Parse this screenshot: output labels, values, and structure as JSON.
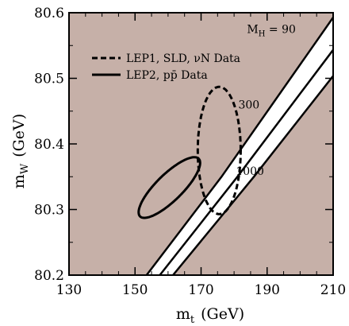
{
  "chart_data": {
    "type": "line",
    "title": "",
    "xlabel": {
      "main": "m",
      "sub": "t",
      "unit": "(GeV)"
    },
    "ylabel": {
      "main": "m",
      "sub": "W",
      "unit": "(GeV)"
    },
    "xlim": [
      130,
      210
    ],
    "ylim": [
      80.2,
      80.6
    ],
    "xticks": [
      130,
      150,
      170,
      190,
      210
    ],
    "yticks": [
      80.2,
      80.3,
      80.4,
      80.5,
      80.6
    ],
    "xtick_labels": [
      "130",
      "150",
      "170",
      "190",
      "210"
    ],
    "ytick_labels": [
      "80.2",
      "80.3",
      "80.4",
      "80.5",
      "80.6"
    ],
    "colors": {
      "excluded_region": "#c6b0a8",
      "allowed_band": "#ffffff",
      "lines": "#000000"
    },
    "band_edges": [
      {
        "mh_label": "90",
        "points": [
          [
            153.5,
            80.2
          ],
          [
            176.2,
            80.35
          ],
          [
            211,
            80.6
          ]
        ]
      },
      {
        "mh_label": "300",
        "points": [
          [
            157.5,
            80.2
          ],
          [
            181,
            80.35
          ],
          [
            211,
            80.55
          ]
        ]
      },
      {
        "mh_label": "1000",
        "points": [
          [
            161.5,
            80.2
          ],
          [
            186,
            80.35
          ],
          [
            211,
            80.51
          ]
        ]
      }
    ],
    "annotations": [
      {
        "pre": "M",
        "sub": "H",
        "post": " = 90",
        "x": 191.3,
        "y": 80.575
      },
      {
        "pre": "300",
        "sub": "",
        "post": "",
        "x": 184.5,
        "y": 80.46
      },
      {
        "pre": "1000",
        "sub": "",
        "post": "",
        "x": 184.8,
        "y": 80.359
      }
    ],
    "series": [
      {
        "name": "LEP1, SLD, νN Data",
        "style": "dashed",
        "shape": "ellipse",
        "center": [
          175.5,
          80.39
        ],
        "semi_axis_x": 6.5,
        "semi_axis_y": 0.097
      },
      {
        "name": "LEP2, pp̄ Data",
        "style": "solid",
        "shape": "ellipse",
        "center": [
          160.4,
          80.3335
        ],
        "semi_axis_major": 12.5,
        "semi_axis_minor": 0.02,
        "major_direction": [
          1,
          0.00496
        ]
      }
    ],
    "legend": {
      "placement": "top-left",
      "entries": [
        {
          "style": "dashed",
          "text": "LEP1, SLD, νN Data"
        },
        {
          "style": "solid",
          "text": "LEP2, pp̄ Data"
        }
      ]
    },
    "grid": false
  }
}
